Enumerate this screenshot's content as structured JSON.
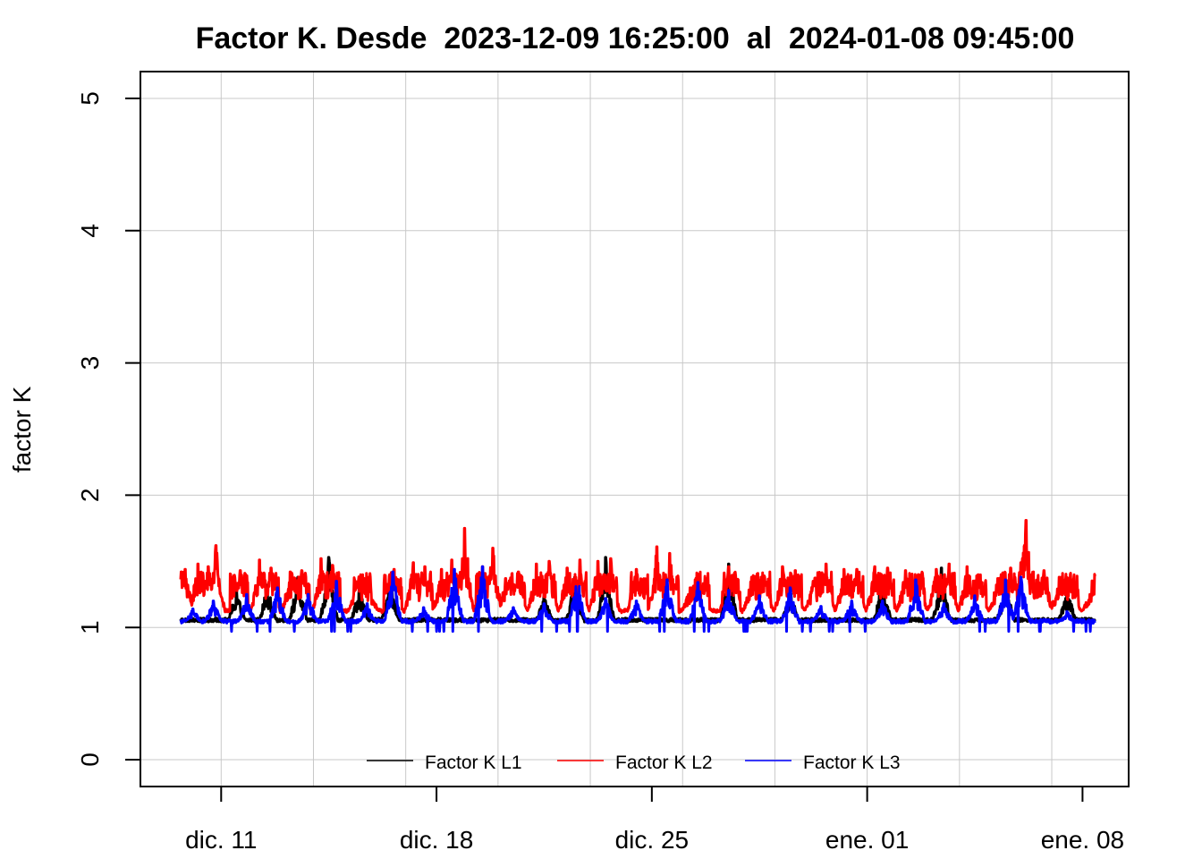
{
  "chart_data": {
    "type": "line",
    "title": "Factor K. Desde  2023-12-09 16:25:00  al  2024-01-08 09:45:00",
    "xlabel": "",
    "ylabel": "factor K",
    "x_start": "2023-12-09 16:25:00",
    "x_end": "2024-01-08 09:45:00",
    "xlim": [
      "2023-12-08 09:00:00",
      "2024-01-09 12:00:00"
    ],
    "ylim": [
      0,
      5
    ],
    "y_ticks": [
      0,
      1,
      2,
      3,
      4,
      5
    ],
    "x_ticks": [
      {
        "date": "2023-12-11",
        "label": "dic. 11"
      },
      {
        "date": "2023-12-18",
        "label": "dic. 18"
      },
      {
        "date": "2023-12-25",
        "label": "dic. 25"
      },
      {
        "date": "2024-01-01",
        "label": "ene. 01"
      },
      {
        "date": "2024-01-08",
        "label": "ene. 08"
      }
    ],
    "x_grid": [
      "2023-12-11",
      "2023-12-14",
      "2023-12-17",
      "2023-12-20",
      "2023-12-23",
      "2023-12-26",
      "2023-12-29",
      "2024-01-01",
      "2024-01-04",
      "2024-01-07"
    ],
    "grid": true,
    "legend_position": "bottom",
    "series": [
      {
        "name": "Factor K L1",
        "color": "#000000",
        "base": 1.05,
        "peaks": [
          [
            "2023-12-11 12:00",
            1.28
          ],
          [
            "2023-12-12 12:00",
            1.32
          ],
          [
            "2023-12-13 12:00",
            1.38
          ],
          [
            "2023-12-14 12:00",
            1.53
          ],
          [
            "2023-12-15 12:00",
            1.3
          ],
          [
            "2023-12-16 12:00",
            1.37
          ],
          [
            "2023-12-21 12:00",
            1.26
          ],
          [
            "2023-12-22 12:00",
            1.38
          ],
          [
            "2023-12-23 12:00",
            1.53
          ],
          [
            "2023-12-27 12:00",
            1.48
          ],
          [
            "2023-12-29 12:00",
            1.28
          ],
          [
            "2024-01-01 12:00",
            1.36
          ],
          [
            "2024-01-03 10:00",
            1.45
          ],
          [
            "2024-01-05 12:00",
            1.35
          ],
          [
            "2024-01-07 12:00",
            1.3
          ]
        ]
      },
      {
        "name": "Factor K L2",
        "color": "#ff0000",
        "base": 1.12,
        "peaks": [
          [
            "2023-12-09 17:00",
            1.42
          ],
          [
            "2023-12-09 20:00",
            1.44
          ],
          [
            "2023-12-10 06:00",
            1.48
          ],
          [
            "2023-12-10 14:00",
            1.46
          ],
          [
            "2023-12-10 20:00",
            1.62
          ],
          [
            "2023-12-11 15:00",
            1.43
          ],
          [
            "2023-12-12 06:00",
            1.51
          ],
          [
            "2023-12-12 15:00",
            1.45
          ],
          [
            "2023-12-13 06:00",
            1.42
          ],
          [
            "2023-12-13 15:00",
            1.43
          ],
          [
            "2023-12-14 06:00",
            1.52
          ],
          [
            "2023-12-14 15:00",
            1.47
          ],
          [
            "2023-12-15 10:00",
            1.34
          ],
          [
            "2023-12-15 20:00",
            1.31
          ],
          [
            "2023-12-16 15:00",
            1.44
          ],
          [
            "2023-12-17 06:00",
            1.49
          ],
          [
            "2023-12-17 15:00",
            1.46
          ],
          [
            "2023-12-18 04:00",
            1.44
          ],
          [
            "2023-12-18 12:00",
            1.51
          ],
          [
            "2023-12-18 22:00",
            1.75
          ],
          [
            "2023-12-19 12:00",
            1.46
          ],
          [
            "2023-12-19 20:00",
            1.6
          ],
          [
            "2023-12-20 06:00",
            1.37
          ],
          [
            "2023-12-20 16:00",
            1.42
          ],
          [
            "2023-12-21 06:00",
            1.48
          ],
          [
            "2023-12-21 16:00",
            1.5
          ],
          [
            "2023-12-22 06:00",
            1.45
          ],
          [
            "2023-12-22 16:00",
            1.51
          ],
          [
            "2023-12-23 06:00",
            1.5
          ],
          [
            "2023-12-23 16:00",
            1.52
          ],
          [
            "2023-12-24 12:00",
            1.44
          ],
          [
            "2023-12-25 04:00",
            1.61
          ],
          [
            "2023-12-25 14:00",
            1.56
          ],
          [
            "2023-12-26 06:00",
            1.3
          ],
          [
            "2023-12-26 16:00",
            1.26
          ],
          [
            "2023-12-27 12:00",
            1.46
          ],
          [
            "2023-12-28 06:00",
            1.38
          ],
          [
            "2023-12-28 16:00",
            1.38
          ],
          [
            "2023-12-29 06:00",
            1.46
          ],
          [
            "2023-12-29 16:00",
            1.43
          ],
          [
            "2023-12-30 06:00",
            1.35
          ],
          [
            "2023-12-30 16:00",
            1.48
          ],
          [
            "2023-12-31 06:00",
            1.44
          ],
          [
            "2023-12-31 16:00",
            1.44
          ],
          [
            "2024-01-01 06:00",
            1.46
          ],
          [
            "2024-01-01 16:00",
            1.45
          ],
          [
            "2024-01-02 06:00",
            1.43
          ],
          [
            "2024-01-02 16:00",
            1.4
          ],
          [
            "2024-01-03 06:00",
            1.44
          ],
          [
            "2024-01-03 16:00",
            1.48
          ],
          [
            "2024-01-04 06:00",
            1.46
          ],
          [
            "2024-01-04 16:00",
            1.3
          ],
          [
            "2024-01-05 06:00",
            1.37
          ],
          [
            "2024-01-05 16:00",
            1.45
          ],
          [
            "2024-01-06 00:00",
            1.49
          ],
          [
            "2024-01-06 04:00",
            1.81
          ],
          [
            "2024-01-06 18:00",
            1.43
          ],
          [
            "2024-01-07 06:00",
            1.38
          ],
          [
            "2024-01-07 16:00",
            1.35
          ],
          [
            "2024-01-08 06:00",
            1.25
          ]
        ]
      },
      {
        "name": "Factor K L3",
        "color": "#0000ff",
        "base": 1.04,
        "peaks": [
          [
            "2023-12-10 02:00",
            1.14
          ],
          [
            "2023-12-10 18:00",
            1.2
          ],
          [
            "2023-12-11 20:00",
            1.25
          ],
          [
            "2023-12-12 20:00",
            1.3
          ],
          [
            "2023-12-13 20:00",
            1.25
          ],
          [
            "2023-12-14 18:00",
            1.35
          ],
          [
            "2023-12-15 18:00",
            1.18
          ],
          [
            "2023-12-16 14:00",
            1.42
          ],
          [
            "2023-12-17 14:00",
            1.15
          ],
          [
            "2023-12-18 14:00",
            1.44
          ],
          [
            "2023-12-19 12:00",
            1.46
          ],
          [
            "2023-12-20 12:00",
            1.15
          ],
          [
            "2023-12-21 12:00",
            1.18
          ],
          [
            "2023-12-22 14:00",
            1.38
          ],
          [
            "2023-12-23 12:00",
            1.22
          ],
          [
            "2023-12-24 12:00",
            1.2
          ],
          [
            "2023-12-25 12:00",
            1.36
          ],
          [
            "2023-12-26 12:00",
            1.34
          ],
          [
            "2023-12-27 12:00",
            1.28
          ],
          [
            "2023-12-28 12:00",
            1.24
          ],
          [
            "2023-12-29 12:00",
            1.3
          ],
          [
            "2023-12-30 12:00",
            1.16
          ],
          [
            "2023-12-31 12:00",
            1.2
          ],
          [
            "2024-01-01 12:00",
            1.2
          ],
          [
            "2024-01-02 14:00",
            1.36
          ],
          [
            "2024-01-03 12:00",
            1.18
          ],
          [
            "2024-01-04 12:00",
            1.24
          ],
          [
            "2024-01-05 12:00",
            1.36
          ],
          [
            "2024-01-06 00:00",
            1.38
          ],
          [
            "2024-01-07 12:00",
            1.12
          ]
        ]
      }
    ]
  }
}
